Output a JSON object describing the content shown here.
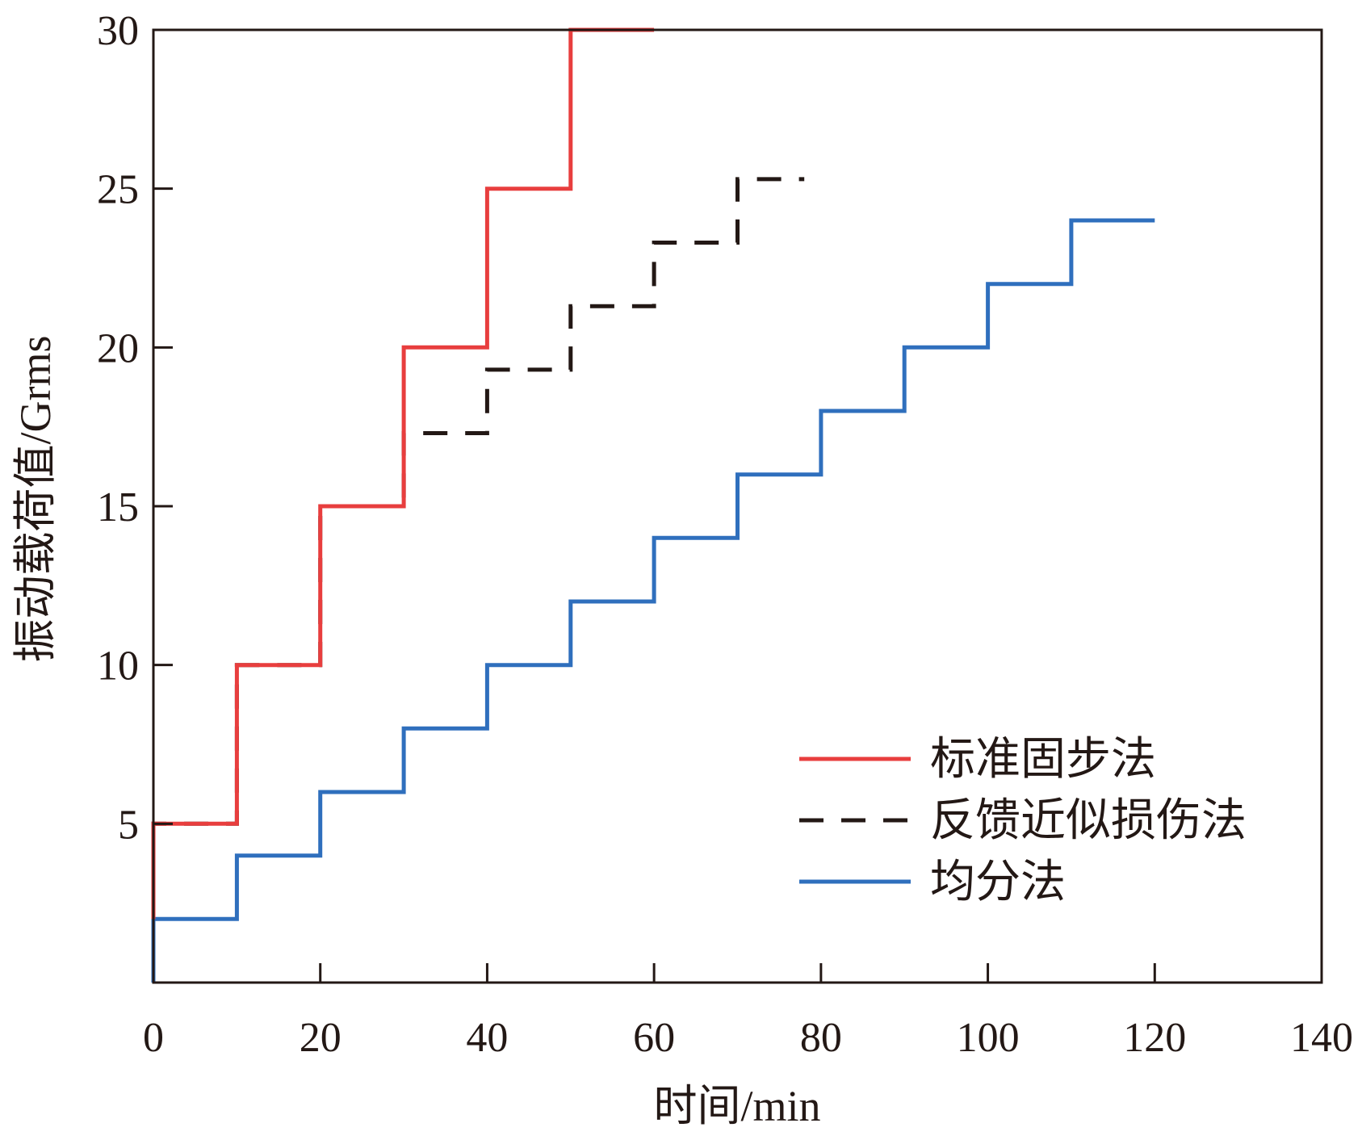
{
  "chart_data": {
    "type": "line",
    "step": true,
    "xlabel": "时间/min",
    "ylabel": "振动载荷值/Grms",
    "xlim": [
      0,
      140
    ],
    "ylim": [
      0,
      30
    ],
    "xticks": [
      0,
      20,
      40,
      60,
      80,
      100,
      120,
      140
    ],
    "yticks": [
      5,
      10,
      15,
      20,
      25,
      30
    ],
    "x_tick_labels": [
      "0",
      "20",
      "40",
      "60",
      "80",
      "100",
      "120",
      "140"
    ],
    "y_tick_labels": [
      "5",
      "10",
      "15",
      "20",
      "25",
      "30"
    ],
    "grid": false,
    "legend_position": "lower-right",
    "series": [
      {
        "name": "标准固步法",
        "color": "#e83e3e",
        "dash": "solid",
        "x": [
          0,
          0,
          10,
          10,
          20,
          20,
          30,
          30,
          40,
          40,
          50,
          50,
          60
        ],
        "y": [
          2,
          5,
          5,
          10,
          10,
          15,
          15,
          20,
          20,
          25,
          25,
          30,
          30
        ]
      },
      {
        "name": "反馈近似损伤法",
        "color": "#231815",
        "dash": "dashed",
        "x": [
          0,
          0,
          10,
          10,
          20,
          20,
          30,
          30,
          40,
          40,
          50,
          50,
          60,
          60,
          70,
          70,
          78
        ],
        "y": [
          2,
          5,
          5,
          10,
          10,
          15,
          15,
          17.3,
          17.3,
          19.3,
          19.3,
          21.3,
          21.3,
          23.3,
          23.3,
          25.3,
          25.3
        ]
      },
      {
        "name": "均分法",
        "color": "#2f6fbd",
        "dash": "solid",
        "x": [
          0,
          0,
          10,
          10,
          20,
          20,
          30,
          30,
          40,
          40,
          50,
          50,
          60,
          60,
          70,
          70,
          80,
          80,
          90,
          90,
          100,
          100,
          110,
          110,
          120
        ],
        "y": [
          0,
          2,
          2,
          4,
          4,
          6,
          6,
          8,
          8,
          10,
          10,
          12,
          12,
          14,
          14,
          16,
          16,
          18,
          18,
          20,
          20,
          22,
          22,
          24,
          24
        ]
      }
    ]
  }
}
